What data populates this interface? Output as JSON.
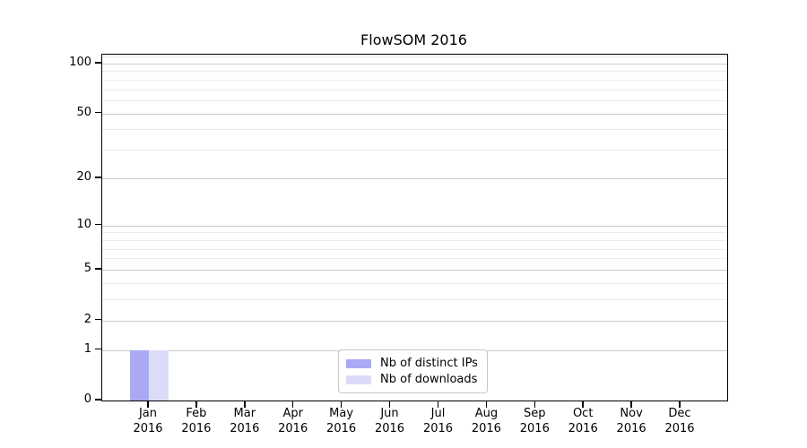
{
  "chart_data": {
    "type": "bar",
    "title": "FlowSOM 2016",
    "categories": [
      {
        "month": "Jan",
        "year": "2016"
      },
      {
        "month": "Feb",
        "year": "2016"
      },
      {
        "month": "Mar",
        "year": "2016"
      },
      {
        "month": "Apr",
        "year": "2016"
      },
      {
        "month": "May",
        "year": "2016"
      },
      {
        "month": "Jun",
        "year": "2016"
      },
      {
        "month": "Jul",
        "year": "2016"
      },
      {
        "month": "Aug",
        "year": "2016"
      },
      {
        "month": "Sep",
        "year": "2016"
      },
      {
        "month": "Oct",
        "year": "2016"
      },
      {
        "month": "Nov",
        "year": "2016"
      },
      {
        "month": "Dec",
        "year": "2016"
      }
    ],
    "series": [
      {
        "name": "Nb of distinct IPs",
        "color": "#a9a9f4",
        "values": [
          1,
          0,
          0,
          0,
          0,
          0,
          0,
          0,
          0,
          0,
          0,
          0
        ]
      },
      {
        "name": "Nb of downloads",
        "color": "#dcdcf8",
        "values": [
          1,
          0,
          0,
          0,
          0,
          0,
          0,
          0,
          0,
          0,
          0,
          0
        ]
      }
    ],
    "y_axis": {
      "scale": "log1p",
      "ticks": [
        0,
        1,
        2,
        5,
        10,
        20,
        50,
        100
      ],
      "tick_labels": [
        "0",
        "1",
        "2",
        "5",
        "10",
        "20",
        "50",
        "100"
      ],
      "minor_ticks": [
        3,
        4,
        6,
        7,
        8,
        9,
        30,
        40,
        60,
        70,
        80,
        90,
        110
      ],
      "max": 113
    },
    "xlabel": "",
    "ylabel": "",
    "grid": true,
    "legend": {
      "position": "lower center"
    },
    "colors": {
      "grid_major": "#cbcbcb",
      "grid_minor": "#ececec",
      "axis": "#000000",
      "text": "#000000",
      "background": "#ffffff"
    }
  }
}
